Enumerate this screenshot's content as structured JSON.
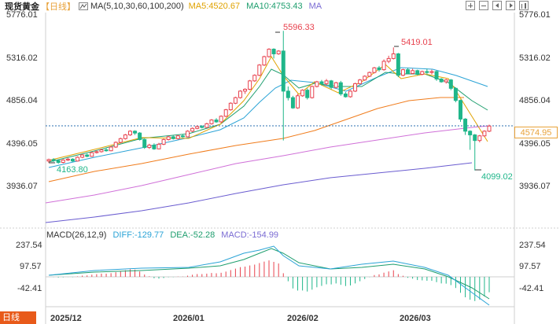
{
  "header": {
    "title": "现货黄金",
    "period": "【日线】",
    "ma_label": "MA(5,10,30,60,100,200)",
    "ma5": "MA5:4520.67",
    "ma10": "MA10:4753.43",
    "ma": "MA"
  },
  "toolbar": {
    "icons": [
      "zoom-in-icon",
      "zoom-out-icon",
      "scroll-left-icon",
      "scroll-right-icon",
      "bar-icon"
    ]
  },
  "price_axis": {
    "left_labels": [
      "5776.01",
      "5316.02",
      "4856.04",
      "4396.05",
      "3936.07"
    ],
    "right_labels": [
      "5776.01",
      "5316.02",
      "4856.04",
      "4396.05",
      "3936.07"
    ],
    "current_price": "4574.95"
  },
  "annotations": {
    "high": "5596.33",
    "second_high": "5419.01",
    "low_left": "4163.80",
    "low_right": "4099.02"
  },
  "macd": {
    "label": "MACD(26,12,9)",
    "diff": "DIFF:-129.77",
    "dea": "DEA:-52.28",
    "macd": "MACD:-154.99",
    "axis_labels": [
      "237.54",
      "97.57",
      "-42.41"
    ]
  },
  "x_axis": {
    "labels": [
      "2025/12",
      "2026/01",
      "2026/02",
      "2026/03"
    ]
  },
  "logo": {
    "text": "日线"
  },
  "colors": {
    "up": "#e8424e",
    "down": "#1fb68a",
    "ma5": "#e0a200",
    "ma10": "#1e9e6e",
    "ma30": "#2aa3d6",
    "ma60": "#f07c1c",
    "ma100": "#d070d8",
    "ma200": "#6a5cd0",
    "current": "#e8a23a"
  },
  "chart_data": {
    "type": "candlestick",
    "ylim": [
      3800,
      5850
    ],
    "x": [
      "2025/12",
      "2026/01",
      "2026/02",
      "2026/03"
    ],
    "candles": [
      [
        4200,
        4215,
        4180,
        4225
      ],
      [
        4215,
        4205,
        4190,
        4230
      ],
      [
        4205,
        4185,
        4170,
        4215
      ],
      [
        4185,
        4210,
        4175,
        4220
      ],
      [
        4210,
        4220,
        4200,
        4235
      ],
      [
        4220,
        4200,
        4190,
        4230
      ],
      [
        4200,
        4240,
        4195,
        4250
      ],
      [
        4240,
        4265,
        4230,
        4275
      ],
      [
        4265,
        4250,
        4240,
        4280
      ],
      [
        4250,
        4290,
        4245,
        4300
      ],
      [
        4290,
        4300,
        4280,
        4315
      ],
      [
        4300,
        4320,
        4290,
        4330
      ],
      [
        4320,
        4310,
        4300,
        4340
      ],
      [
        4310,
        4350,
        4305,
        4360
      ],
      [
        4350,
        4400,
        4340,
        4410
      ],
      [
        4400,
        4440,
        4390,
        4450
      ],
      [
        4440,
        4480,
        4430,
        4490
      ],
      [
        4480,
        4520,
        4470,
        4530
      ],
      [
        4520,
        4500,
        4480,
        4530
      ],
      [
        4500,
        4430,
        4420,
        4510
      ],
      [
        4430,
        4345,
        4330,
        4440
      ],
      [
        4345,
        4370,
        4330,
        4385
      ],
      [
        4370,
        4330,
        4320,
        4390
      ],
      [
        4330,
        4380,
        4325,
        4395
      ],
      [
        4380,
        4430,
        4370,
        4440
      ],
      [
        4430,
        4460,
        4420,
        4470
      ],
      [
        4460,
        4440,
        4430,
        4475
      ],
      [
        4440,
        4470,
        4430,
        4480
      ],
      [
        4470,
        4460,
        4450,
        4490
      ],
      [
        4460,
        4520,
        4455,
        4530
      ],
      [
        4520,
        4550,
        4510,
        4560
      ],
      [
        4550,
        4570,
        4540,
        4580
      ],
      [
        4570,
        4560,
        4550,
        4585
      ],
      [
        4560,
        4600,
        4555,
        4610
      ],
      [
        4600,
        4640,
        4590,
        4650
      ],
      [
        4640,
        4620,
        4610,
        4660
      ],
      [
        4620,
        4680,
        4610,
        4690
      ],
      [
        4680,
        4750,
        4670,
        4760
      ],
      [
        4750,
        4820,
        4740,
        4830
      ],
      [
        4820,
        4880,
        4810,
        4890
      ],
      [
        4880,
        4950,
        4870,
        4960
      ],
      [
        4950,
        4970,
        4920,
        4980
      ],
      [
        4970,
        5060,
        4960,
        5070
      ],
      [
        5060,
        5120,
        5050,
        5130
      ],
      [
        5120,
        5230,
        5110,
        5240
      ],
      [
        5230,
        5320,
        5220,
        5330
      ],
      [
        5320,
        5400,
        5310,
        5410
      ],
      [
        5400,
        5350,
        5300,
        5410
      ],
      [
        5350,
        5380,
        5340,
        5390
      ],
      [
        5380,
        4950,
        4420,
        5596.33
      ],
      [
        4950,
        4880,
        4850,
        5000
      ],
      [
        4880,
        4770,
        4760,
        4900
      ],
      [
        4770,
        4900,
        4760,
        4920
      ],
      [
        4900,
        4960,
        4890,
        4970
      ],
      [
        4960,
        4880,
        4860,
        4980
      ],
      [
        4880,
        5000,
        4870,
        5010
      ],
      [
        5000,
        5050,
        4990,
        5060
      ],
      [
        5050,
        5030,
        5010,
        5070
      ],
      [
        5030,
        5060,
        5010,
        5080
      ],
      [
        5060,
        4990,
        4970,
        5070
      ],
      [
        4990,
        5040,
        4980,
        5050
      ],
      [
        5040,
        4920,
        4900,
        5060
      ],
      [
        4920,
        4890,
        4880,
        4940
      ],
      [
        4890,
        4950,
        4880,
        4960
      ],
      [
        4950,
        5030,
        4940,
        5040
      ],
      [
        5030,
        5070,
        5020,
        5080
      ],
      [
        5070,
        5110,
        5060,
        5120
      ],
      [
        5110,
        5150,
        5100,
        5160
      ],
      [
        5150,
        5200,
        5140,
        5210
      ],
      [
        5200,
        5180,
        5160,
        5220
      ],
      [
        5180,
        5270,
        5170,
        5290
      ],
      [
        5270,
        5300,
        5250,
        5330
      ],
      [
        5300,
        5350,
        5290,
        5419.01
      ],
      [
        5350,
        5120,
        5100,
        5360
      ],
      [
        5120,
        5180,
        5110,
        5190
      ],
      [
        5180,
        5140,
        5130,
        5200
      ],
      [
        5140,
        5170,
        5130,
        5190
      ],
      [
        5170,
        5130,
        5120,
        5180
      ],
      [
        5130,
        5160,
        5120,
        5170
      ],
      [
        5160,
        5150,
        5130,
        5190
      ],
      [
        5150,
        5160,
        5130,
        5180
      ],
      [
        5160,
        5080,
        5060,
        5170
      ],
      [
        5080,
        5050,
        5040,
        5090
      ],
      [
        5050,
        5070,
        5030,
        5080
      ],
      [
        5070,
        4980,
        4960,
        5080
      ],
      [
        4980,
        4850,
        4830,
        4990
      ],
      [
        4850,
        4650,
        4620,
        4860
      ],
      [
        4650,
        4520,
        4480,
        4660
      ],
      [
        4520,
        4480,
        4320,
        4530
      ],
      [
        4480,
        4420,
        4099.02,
        4490
      ],
      [
        4420,
        4470,
        4400,
        4480
      ],
      [
        4470,
        4520,
        4460,
        4530
      ],
      [
        4520,
        4574.95,
        4510,
        4590
      ]
    ]
  }
}
